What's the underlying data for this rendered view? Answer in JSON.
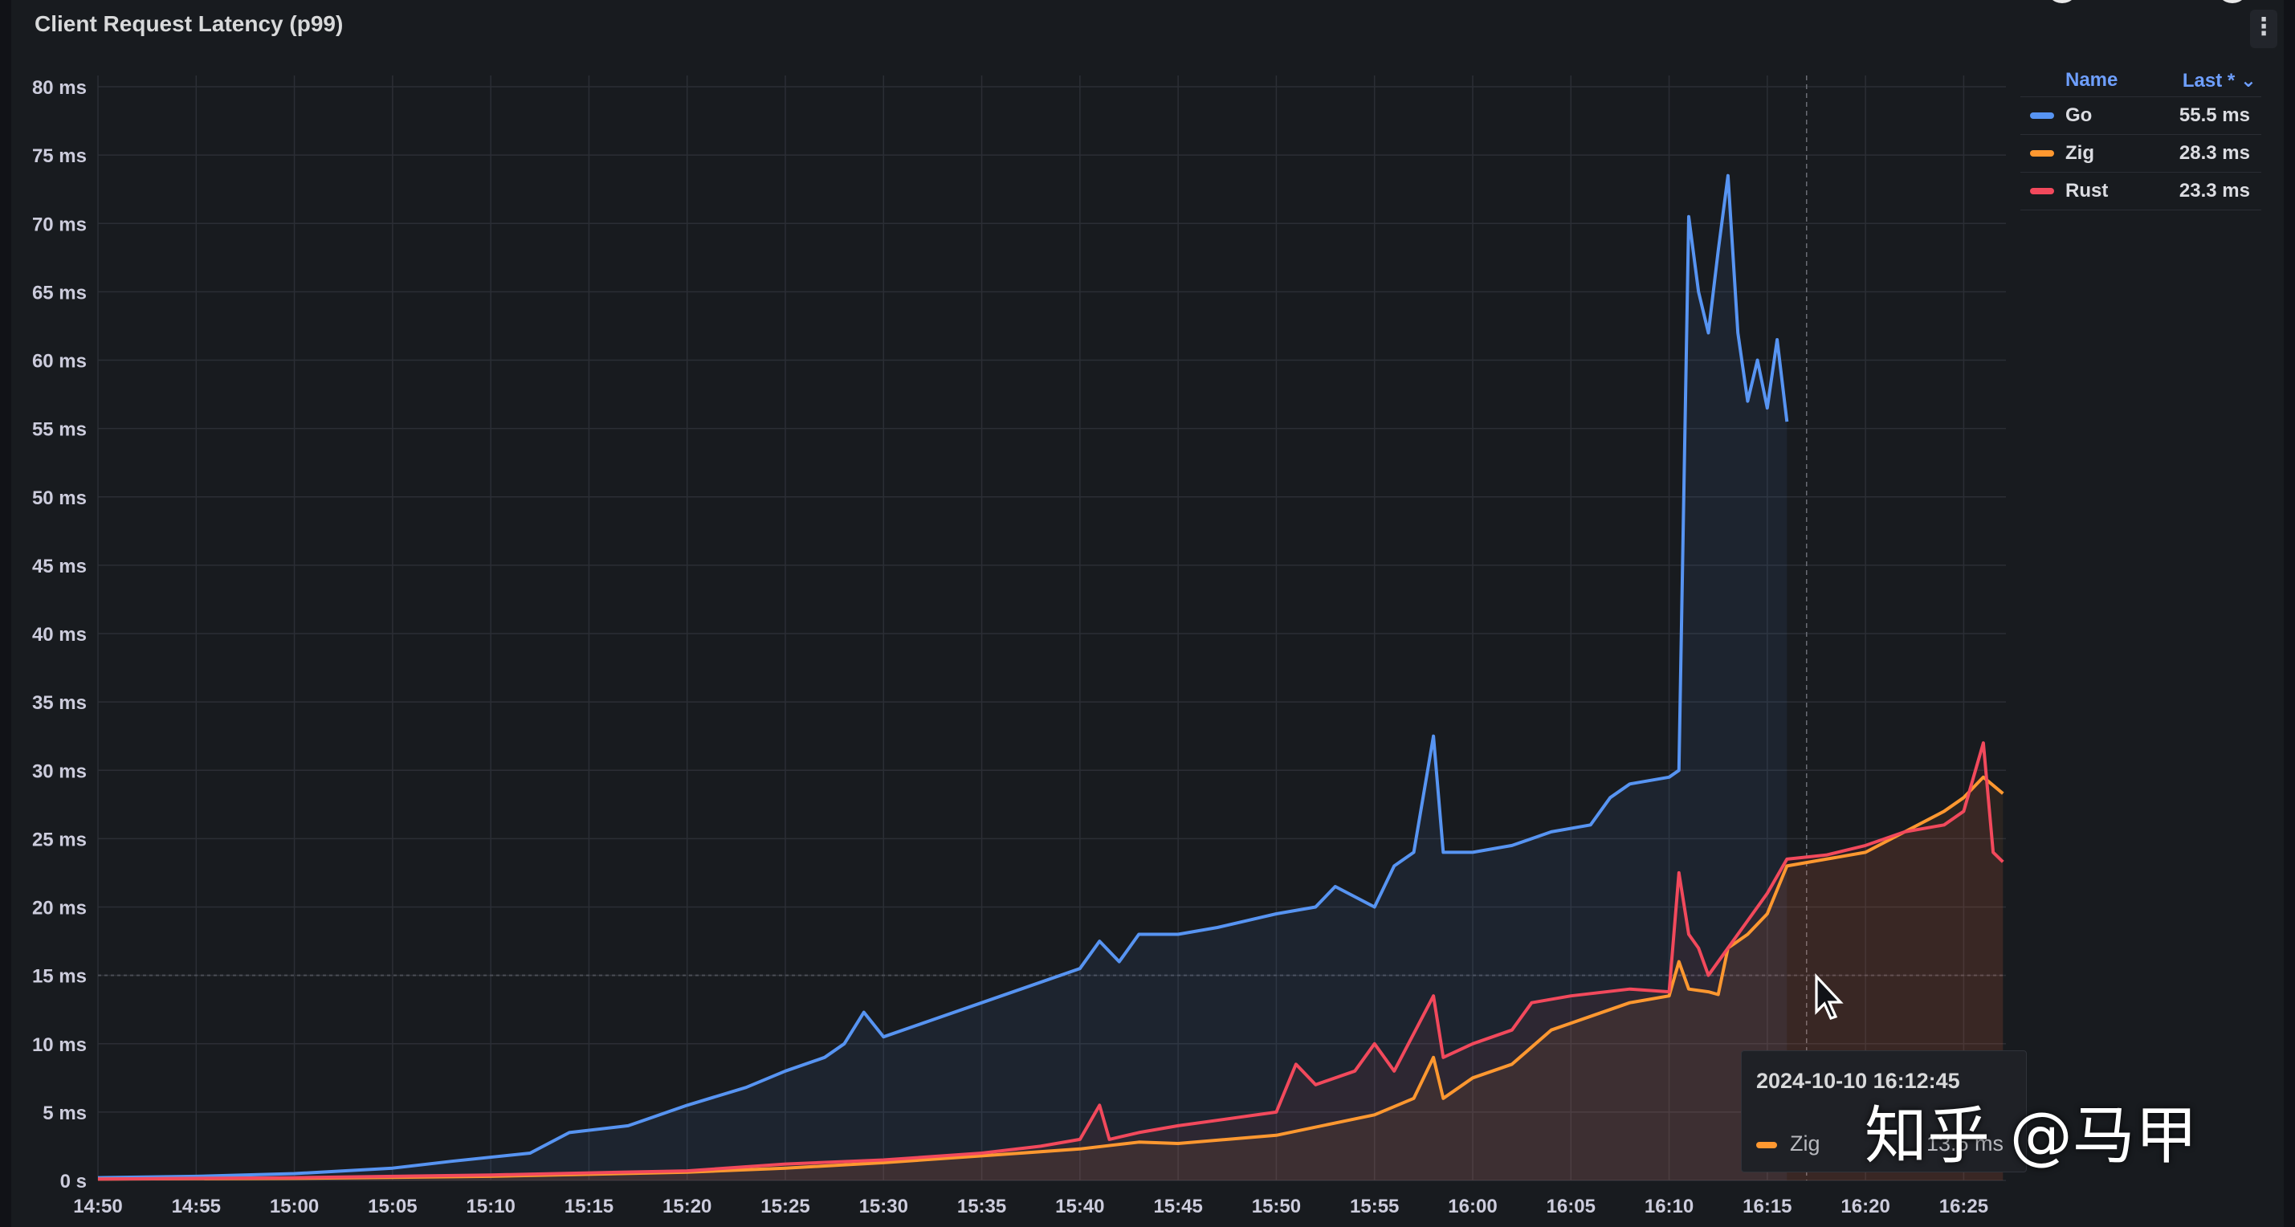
{
  "panel": {
    "title": "Client Request Latency (p99)",
    "menu_icon": "⋮"
  },
  "legend": {
    "name_header": "Name",
    "last_header": "Last * ⌄",
    "items": [
      {
        "name": "Go",
        "value": "55.5 ms",
        "color": "#5794f2"
      },
      {
        "name": "Zig",
        "value": "28.3 ms",
        "color": "#ff9830"
      },
      {
        "name": "Rust",
        "value": "23.3 ms",
        "color": "#f2495c"
      }
    ]
  },
  "tooltip": {
    "time": "2024-10-10 16:12:45",
    "series": "Zig",
    "value": "13.6 ms"
  },
  "watermark": "知乎 @马甲",
  "chart_data": {
    "type": "line",
    "y_unit": "ms",
    "ylim": [
      0,
      80
    ],
    "y_ticks": [
      "0 s",
      "5 ms",
      "10 ms",
      "15 ms",
      "20 ms",
      "25 ms",
      "30 ms",
      "35 ms",
      "40 ms",
      "45 ms",
      "50 ms",
      "55 ms",
      "60 ms",
      "65 ms",
      "70 ms",
      "75 ms",
      "80 ms"
    ],
    "x_ticks": [
      "14:50",
      "14:55",
      "15:00",
      "15:05",
      "15:10",
      "15:15",
      "15:20",
      "15:25",
      "15:30",
      "15:35",
      "15:40",
      "15:45",
      "15:50",
      "15:55",
      "16:00",
      "16:05",
      "16:10",
      "16:15",
      "16:20",
      "16:25"
    ],
    "x_range": [
      "14:50",
      "16:27"
    ],
    "grid": true,
    "legend_position": "top-right",
    "threshold_ms": 15,
    "series": [
      {
        "name": "Go",
        "color": "#5794f2",
        "end": "16:16",
        "points": [
          [
            "14:50",
            0.2
          ],
          [
            "14:55",
            0.3
          ],
          [
            "15:00",
            0.5
          ],
          [
            "15:05",
            0.9
          ],
          [
            "15:08",
            1.4
          ],
          [
            "15:12",
            2
          ],
          [
            "15:14",
            3.5
          ],
          [
            "15:17",
            4
          ],
          [
            "15:20",
            5.5
          ],
          [
            "15:23",
            6.8
          ],
          [
            "15:25",
            8
          ],
          [
            "15:27",
            9
          ],
          [
            "15:28",
            10
          ],
          [
            "15:29",
            12.3
          ],
          [
            "15:30",
            10.5
          ],
          [
            "15:32",
            11.5
          ],
          [
            "15:35",
            13
          ],
          [
            "15:37",
            14
          ],
          [
            "15:40",
            15.5
          ],
          [
            "15:41",
            17.5
          ],
          [
            "15:42",
            16
          ],
          [
            "15:43",
            18
          ],
          [
            "15:45",
            18
          ],
          [
            "15:47",
            18.5
          ],
          [
            "15:50",
            19.5
          ],
          [
            "15:52",
            20
          ],
          [
            "15:53",
            21.5
          ],
          [
            "15:55",
            20
          ],
          [
            "15:56",
            23
          ],
          [
            "15:57",
            24
          ],
          [
            "15:58",
            32.5
          ],
          [
            "15:58.5",
            24
          ],
          [
            "16:00",
            24
          ],
          [
            "16:02",
            24.5
          ],
          [
            "16:04",
            25.5
          ],
          [
            "16:06",
            26
          ],
          [
            "16:07",
            28
          ],
          [
            "16:08",
            29
          ],
          [
            "16:10",
            29.5
          ],
          [
            "16:10.5",
            30
          ],
          [
            "16:11",
            70.5
          ],
          [
            "16:11.5",
            65
          ],
          [
            "16:12",
            62
          ],
          [
            "16:12.5",
            68
          ],
          [
            "16:13",
            73.5
          ],
          [
            "16:13.5",
            62
          ],
          [
            "16:14",
            57
          ],
          [
            "16:14.5",
            60
          ],
          [
            "16:15",
            56.5
          ],
          [
            "16:15.5",
            61.5
          ],
          [
            "16:16",
            55.5
          ]
        ]
      },
      {
        "name": "Zig",
        "color": "#ff9830",
        "end": "16:27",
        "points": [
          [
            "14:50",
            0.1
          ],
          [
            "15:00",
            0.15
          ],
          [
            "15:10",
            0.3
          ],
          [
            "15:20",
            0.6
          ],
          [
            "15:25",
            0.9
          ],
          [
            "15:30",
            1.3
          ],
          [
            "15:35",
            1.8
          ],
          [
            "15:40",
            2.3
          ],
          [
            "15:43",
            2.8
          ],
          [
            "15:45",
            2.7
          ],
          [
            "15:50",
            3.3
          ],
          [
            "15:55",
            4.8
          ],
          [
            "15:57",
            6
          ],
          [
            "15:58",
            9
          ],
          [
            "15:58.5",
            6
          ],
          [
            "16:00",
            7.5
          ],
          [
            "16:02",
            8.5
          ],
          [
            "16:04",
            11
          ],
          [
            "16:06",
            12
          ],
          [
            "16:08",
            13
          ],
          [
            "16:10",
            13.5
          ],
          [
            "16:10.5",
            16
          ],
          [
            "16:11",
            14
          ],
          [
            "16:12",
            13.8
          ],
          [
            "16:12.5",
            13.6
          ],
          [
            "16:13",
            17
          ],
          [
            "16:14",
            18
          ],
          [
            "16:15",
            19.5
          ],
          [
            "16:16",
            23
          ],
          [
            "16:18",
            23.5
          ],
          [
            "16:20",
            24
          ],
          [
            "16:22",
            25.5
          ],
          [
            "16:24",
            27
          ],
          [
            "16:25",
            28
          ],
          [
            "16:26",
            29.5
          ],
          [
            "16:27",
            28.3
          ]
        ]
      },
      {
        "name": "Rust",
        "color": "#f2495c",
        "end": "16:27",
        "points": [
          [
            "14:50",
            0.1
          ],
          [
            "15:00",
            0.2
          ],
          [
            "15:10",
            0.4
          ],
          [
            "15:20",
            0.7
          ],
          [
            "15:25",
            1.2
          ],
          [
            "15:30",
            1.5
          ],
          [
            "15:35",
            2
          ],
          [
            "15:38",
            2.5
          ],
          [
            "15:40",
            3
          ],
          [
            "15:41",
            5.5
          ],
          [
            "15:41.5",
            3
          ],
          [
            "15:43",
            3.5
          ],
          [
            "15:45",
            4
          ],
          [
            "15:50",
            5
          ],
          [
            "15:51",
            8.5
          ],
          [
            "15:52",
            7
          ],
          [
            "15:54",
            8
          ],
          [
            "15:55",
            10
          ],
          [
            "15:56",
            8
          ],
          [
            "15:58",
            13.5
          ],
          [
            "15:58.5",
            9
          ],
          [
            "16:00",
            10
          ],
          [
            "16:02",
            11
          ],
          [
            "16:03",
            13
          ],
          [
            "16:05",
            13.5
          ],
          [
            "16:08",
            14
          ],
          [
            "16:10",
            13.8
          ],
          [
            "16:10.5",
            22.5
          ],
          [
            "16:11",
            18
          ],
          [
            "16:11.5",
            17
          ],
          [
            "16:12",
            15
          ],
          [
            "16:13",
            17
          ],
          [
            "16:14",
            19
          ],
          [
            "16:15",
            21
          ],
          [
            "16:16",
            23.5
          ],
          [
            "16:18",
            23.8
          ],
          [
            "16:20",
            24.5
          ],
          [
            "16:22",
            25.5
          ],
          [
            "16:24",
            26
          ],
          [
            "16:25",
            27
          ],
          [
            "16:26",
            32
          ],
          [
            "16:26.5",
            24
          ],
          [
            "16:27",
            23.3
          ]
        ]
      }
    ]
  }
}
